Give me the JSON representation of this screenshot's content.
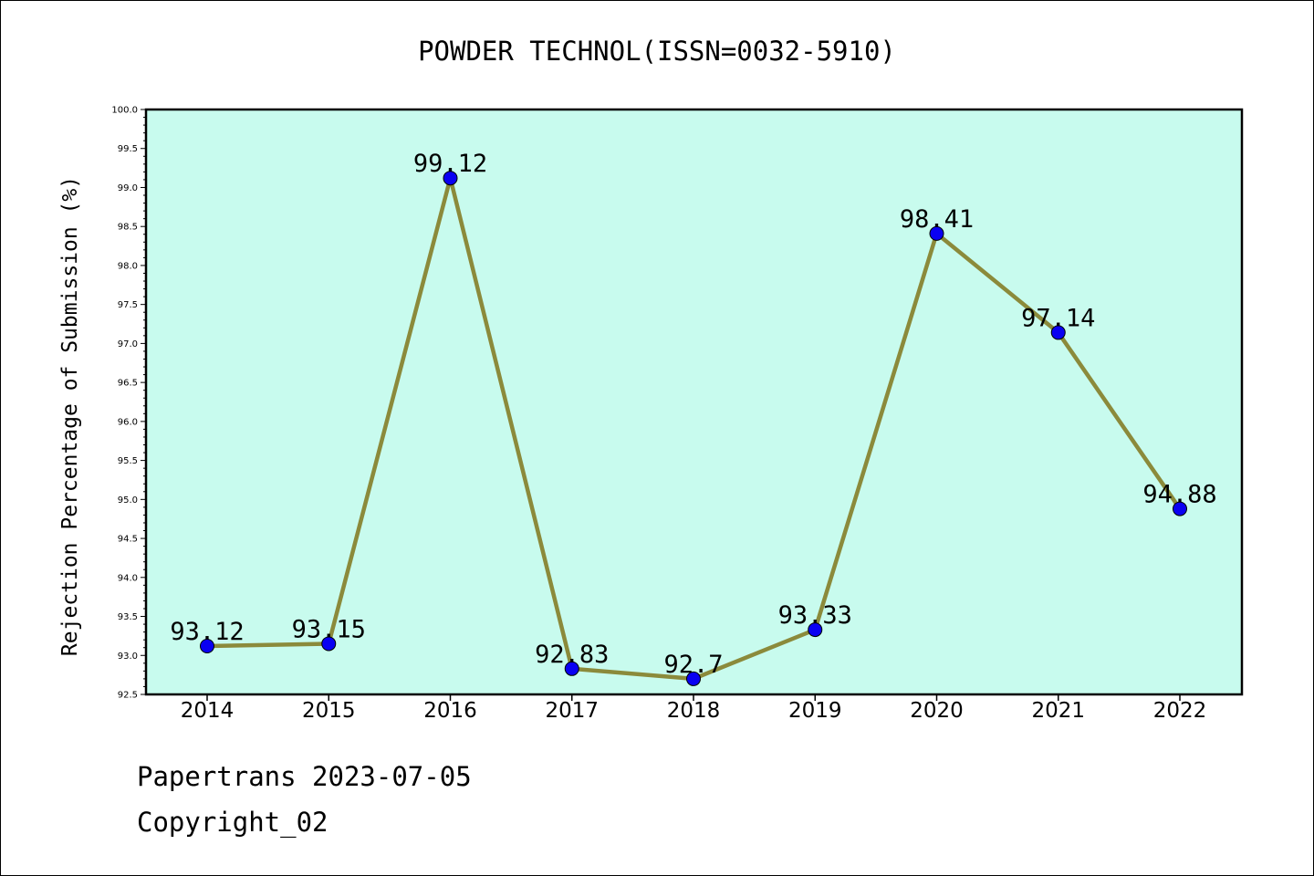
{
  "chart_data": {
    "type": "line",
    "title": "POWDER TECHNOL(ISSN=0032-5910)",
    "ylabel": "Rejection Percentage of Submission (%)",
    "xlabel": "",
    "categories": [
      "2014",
      "2015",
      "2016",
      "2017",
      "2018",
      "2019",
      "2020",
      "2021",
      "2022"
    ],
    "series": [
      {
        "values": [
          93.12,
          93.15,
          99.12,
          92.83,
          92.7,
          93.33,
          98.41,
          97.14,
          94.88
        ],
        "data_labels": [
          "93.12",
          "93.15",
          "99.12",
          "92.83",
          "92.7",
          "93.33",
          "98.41",
          "97.14",
          "94.88"
        ]
      }
    ],
    "ylim": [
      92.5,
      100.0
    ],
    "yticks": [
      "92.5",
      "93.0",
      "93.5",
      "94.0",
      "94.5",
      "95.0",
      "95.5",
      "96.0",
      "96.5",
      "97.0",
      "97.5",
      "98.0",
      "98.5",
      "99.0",
      "99.5",
      "100.0"
    ],
    "grid": false,
    "legend": "none",
    "colors": {
      "plot_background": "#c8fbee",
      "line": "#8b8a3b",
      "marker": "#0a00f2"
    }
  },
  "footer": {
    "source_line": "Papertrans 2023-07-05",
    "copyright_line": "Copyright_02"
  }
}
